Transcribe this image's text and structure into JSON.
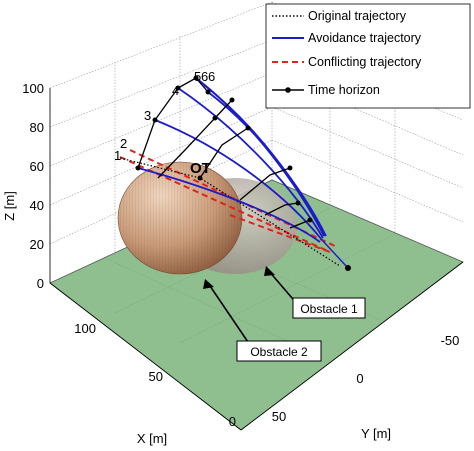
{
  "chart_data": {
    "type": "line3d",
    "title": "",
    "axes": {
      "x": {
        "label": "X [m]",
        "ticks": [
          "0",
          "50",
          "100"
        ],
        "range": [
          0,
          130
        ]
      },
      "y": {
        "label": "Y [m]",
        "ticks": [
          "50",
          "0",
          "-50"
        ],
        "range": [
          -60,
          70
        ]
      },
      "z": {
        "label": "Z [m]",
        "ticks": [
          "0",
          "20",
          "40",
          "60",
          "80",
          "100"
        ],
        "range": [
          0,
          100
        ]
      }
    },
    "grid": true,
    "legend": {
      "placement": "top-right",
      "entries": [
        {
          "label": "Original trajectory",
          "style": "dotted",
          "color": "#000000"
        },
        {
          "label": "Avoidance trajectory",
          "style": "solid",
          "color": "#1c1ccc"
        },
        {
          "label": "Conflicting trajectory",
          "style": "dashed",
          "color": "#e0231b"
        },
        {
          "label": "Time horizon",
          "style": "solid-marker",
          "color": "#000000"
        }
      ]
    },
    "annotations": {
      "ot_label": "OT",
      "step_labels": [
        "1",
        "2",
        "3",
        "4",
        "5",
        "6",
        "6"
      ],
      "obstacle_1": "Obstacle 1",
      "obstacle_2": "Obstacle 2"
    },
    "colors": {
      "ground": "#8fbf8f",
      "obstacle_2": "#c09070",
      "obstacle_1": "#b4aaa0",
      "avoid": "#1c1ccc",
      "conflict": "#e0231b"
    }
  }
}
